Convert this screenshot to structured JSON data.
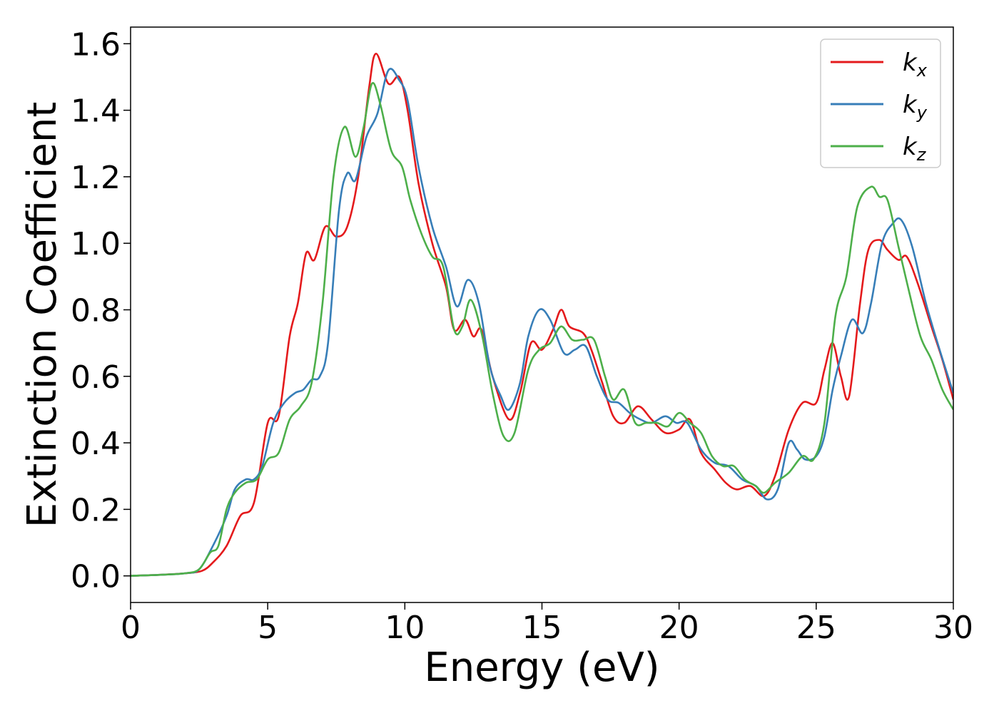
{
  "chart_data": {
    "type": "line",
    "title": "",
    "xlabel": "Energy (eV)",
    "ylabel": "Extinction Coefficient",
    "xlim": [
      0,
      30
    ],
    "ylim": [
      -0.08,
      1.65
    ],
    "xticks": [
      0,
      5,
      10,
      15,
      20,
      25,
      30
    ],
    "xtick_labels": [
      "0",
      "5",
      "10",
      "15",
      "20",
      "25",
      "30"
    ],
    "yticks": [
      0.0,
      0.2,
      0.4,
      0.6,
      0.8,
      1.0,
      1.2,
      1.4,
      1.6
    ],
    "ytick_labels": [
      "0.0",
      "0.2",
      "0.4",
      "0.6",
      "0.8",
      "1.0",
      "1.2",
      "1.4",
      "1.6"
    ],
    "grid": false,
    "legend_position": "top-right",
    "series": [
      {
        "name": "k",
        "subscript": "x",
        "color": "#e41a1c",
        "points": [
          [
            0,
            0.0
          ],
          [
            1,
            0.003
          ],
          [
            2,
            0.008
          ],
          [
            2.6,
            0.015
          ],
          [
            3,
            0.04
          ],
          [
            3.5,
            0.09
          ],
          [
            4,
            0.18
          ],
          [
            4.5,
            0.22
          ],
          [
            5,
            0.46
          ],
          [
            5.4,
            0.48
          ],
          [
            5.8,
            0.72
          ],
          [
            6.1,
            0.82
          ],
          [
            6.4,
            0.97
          ],
          [
            6.7,
            0.95
          ],
          [
            7.1,
            1.05
          ],
          [
            7.5,
            1.02
          ],
          [
            7.9,
            1.05
          ],
          [
            8.3,
            1.2
          ],
          [
            8.7,
            1.47
          ],
          [
            8.95,
            1.57
          ],
          [
            9.4,
            1.48
          ],
          [
            9.8,
            1.5
          ],
          [
            10.1,
            1.4
          ],
          [
            10.5,
            1.18
          ],
          [
            11,
            1.0
          ],
          [
            11.5,
            0.87
          ],
          [
            11.8,
            0.74
          ],
          [
            12.2,
            0.77
          ],
          [
            12.5,
            0.72
          ],
          [
            12.8,
            0.74
          ],
          [
            13.2,
            0.6
          ],
          [
            13.8,
            0.47
          ],
          [
            14.2,
            0.55
          ],
          [
            14.6,
            0.7
          ],
          [
            15,
            0.68
          ],
          [
            15.4,
            0.74
          ],
          [
            15.7,
            0.8
          ],
          [
            16,
            0.75
          ],
          [
            16.5,
            0.73
          ],
          [
            16.8,
            0.68
          ],
          [
            17.2,
            0.58
          ],
          [
            17.6,
            0.48
          ],
          [
            18,
            0.46
          ],
          [
            18.5,
            0.51
          ],
          [
            19,
            0.47
          ],
          [
            19.5,
            0.43
          ],
          [
            20,
            0.44
          ],
          [
            20.4,
            0.47
          ],
          [
            20.8,
            0.37
          ],
          [
            21.3,
            0.32
          ],
          [
            21.7,
            0.28
          ],
          [
            22.1,
            0.26
          ],
          [
            22.6,
            0.27
          ],
          [
            23.1,
            0.24
          ],
          [
            23.5,
            0.3
          ],
          [
            24,
            0.44
          ],
          [
            24.5,
            0.52
          ],
          [
            25,
            0.52
          ],
          [
            25.3,
            0.62
          ],
          [
            25.6,
            0.7
          ],
          [
            25.9,
            0.6
          ],
          [
            26.2,
            0.54
          ],
          [
            26.6,
            0.82
          ],
          [
            26.9,
            0.98
          ],
          [
            27.3,
            1.01
          ],
          [
            27.6,
            0.98
          ],
          [
            28,
            0.95
          ],
          [
            28.3,
            0.96
          ],
          [
            28.7,
            0.88
          ],
          [
            29.2,
            0.75
          ],
          [
            29.6,
            0.65
          ],
          [
            30,
            0.53
          ]
        ]
      },
      {
        "name": "k",
        "subscript": "y",
        "color": "#377eb8",
        "points": [
          [
            0,
            0.0
          ],
          [
            1,
            0.003
          ],
          [
            2,
            0.008
          ],
          [
            2.5,
            0.02
          ],
          [
            3,
            0.09
          ],
          [
            3.5,
            0.18
          ],
          [
            3.8,
            0.26
          ],
          [
            4.2,
            0.29
          ],
          [
            4.5,
            0.29
          ],
          [
            4.8,
            0.33
          ],
          [
            5.2,
            0.46
          ],
          [
            5.6,
            0.52
          ],
          [
            6,
            0.55
          ],
          [
            6.3,
            0.56
          ],
          [
            6.6,
            0.59
          ],
          [
            6.9,
            0.6
          ],
          [
            7.2,
            0.7
          ],
          [
            7.6,
            1.1
          ],
          [
            7.9,
            1.21
          ],
          [
            8.2,
            1.19
          ],
          [
            8.6,
            1.32
          ],
          [
            9,
            1.39
          ],
          [
            9.4,
            1.52
          ],
          [
            9.8,
            1.49
          ],
          [
            10.1,
            1.43
          ],
          [
            10.5,
            1.23
          ],
          [
            11,
            1.05
          ],
          [
            11.5,
            0.93
          ],
          [
            11.9,
            0.81
          ],
          [
            12.3,
            0.89
          ],
          [
            12.7,
            0.82
          ],
          [
            13.1,
            0.63
          ],
          [
            13.5,
            0.54
          ],
          [
            13.8,
            0.5
          ],
          [
            14.2,
            0.58
          ],
          [
            14.5,
            0.72
          ],
          [
            14.9,
            0.8
          ],
          [
            15.3,
            0.77
          ],
          [
            15.8,
            0.67
          ],
          [
            16.2,
            0.68
          ],
          [
            16.6,
            0.69
          ],
          [
            17,
            0.6
          ],
          [
            17.4,
            0.53
          ],
          [
            17.8,
            0.52
          ],
          [
            18.2,
            0.49
          ],
          [
            18.6,
            0.47
          ],
          [
            19,
            0.46
          ],
          [
            19.5,
            0.48
          ],
          [
            19.9,
            0.46
          ],
          [
            20.3,
            0.46
          ],
          [
            20.8,
            0.38
          ],
          [
            21.3,
            0.34
          ],
          [
            21.8,
            0.33
          ],
          [
            22.3,
            0.29
          ],
          [
            22.8,
            0.27
          ],
          [
            23.2,
            0.23
          ],
          [
            23.6,
            0.26
          ],
          [
            24,
            0.4
          ],
          [
            24.3,
            0.38
          ],
          [
            24.6,
            0.35
          ],
          [
            25,
            0.36
          ],
          [
            25.3,
            0.42
          ],
          [
            25.6,
            0.56
          ],
          [
            25.9,
            0.66
          ],
          [
            26.3,
            0.77
          ],
          [
            26.7,
            0.73
          ],
          [
            27,
            0.82
          ],
          [
            27.4,
            1.0
          ],
          [
            27.8,
            1.06
          ],
          [
            28.1,
            1.07
          ],
          [
            28.5,
            0.99
          ],
          [
            29,
            0.82
          ],
          [
            29.5,
            0.68
          ],
          [
            30,
            0.55
          ]
        ]
      },
      {
        "name": "k",
        "subscript": "z",
        "color": "#4daf4a",
        "points": [
          [
            0,
            0.0
          ],
          [
            1,
            0.003
          ],
          [
            2,
            0.008
          ],
          [
            2.5,
            0.02
          ],
          [
            2.9,
            0.07
          ],
          [
            3.2,
            0.09
          ],
          [
            3.5,
            0.2
          ],
          [
            3.8,
            0.25
          ],
          [
            4.2,
            0.28
          ],
          [
            4.6,
            0.29
          ],
          [
            5,
            0.35
          ],
          [
            5.4,
            0.37
          ],
          [
            5.8,
            0.47
          ],
          [
            6.2,
            0.51
          ],
          [
            6.6,
            0.58
          ],
          [
            7,
            0.82
          ],
          [
            7.4,
            1.2
          ],
          [
            7.8,
            1.35
          ],
          [
            8.2,
            1.26
          ],
          [
            8.5,
            1.35
          ],
          [
            8.8,
            1.48
          ],
          [
            9.1,
            1.42
          ],
          [
            9.5,
            1.28
          ],
          [
            9.9,
            1.23
          ],
          [
            10.2,
            1.13
          ],
          [
            10.6,
            1.03
          ],
          [
            11,
            0.96
          ],
          [
            11.4,
            0.93
          ],
          [
            11.8,
            0.74
          ],
          [
            12.1,
            0.75
          ],
          [
            12.4,
            0.83
          ],
          [
            12.8,
            0.73
          ],
          [
            13.2,
            0.55
          ],
          [
            13.6,
            0.42
          ],
          [
            14,
            0.43
          ],
          [
            14.5,
            0.62
          ],
          [
            14.9,
            0.68
          ],
          [
            15.3,
            0.7
          ],
          [
            15.7,
            0.75
          ],
          [
            16.1,
            0.71
          ],
          [
            16.5,
            0.71
          ],
          [
            16.9,
            0.71
          ],
          [
            17.3,
            0.6
          ],
          [
            17.6,
            0.53
          ],
          [
            18,
            0.56
          ],
          [
            18.4,
            0.46
          ],
          [
            18.8,
            0.46
          ],
          [
            19.2,
            0.46
          ],
          [
            19.6,
            0.45
          ],
          [
            20,
            0.49
          ],
          [
            20.4,
            0.46
          ],
          [
            20.8,
            0.43
          ],
          [
            21.2,
            0.36
          ],
          [
            21.6,
            0.33
          ],
          [
            22,
            0.33
          ],
          [
            22.4,
            0.29
          ],
          [
            22.8,
            0.27
          ],
          [
            23.1,
            0.25
          ],
          [
            23.5,
            0.28
          ],
          [
            24,
            0.31
          ],
          [
            24.5,
            0.36
          ],
          [
            24.9,
            0.35
          ],
          [
            25.3,
            0.46
          ],
          [
            25.7,
            0.78
          ],
          [
            26.1,
            0.9
          ],
          [
            26.5,
            1.11
          ],
          [
            27,
            1.17
          ],
          [
            27.3,
            1.14
          ],
          [
            27.6,
            1.13
          ],
          [
            28,
            0.99
          ],
          [
            28.4,
            0.85
          ],
          [
            28.8,
            0.72
          ],
          [
            29.2,
            0.65
          ],
          [
            29.6,
            0.56
          ],
          [
            30,
            0.5
          ]
        ]
      }
    ]
  }
}
